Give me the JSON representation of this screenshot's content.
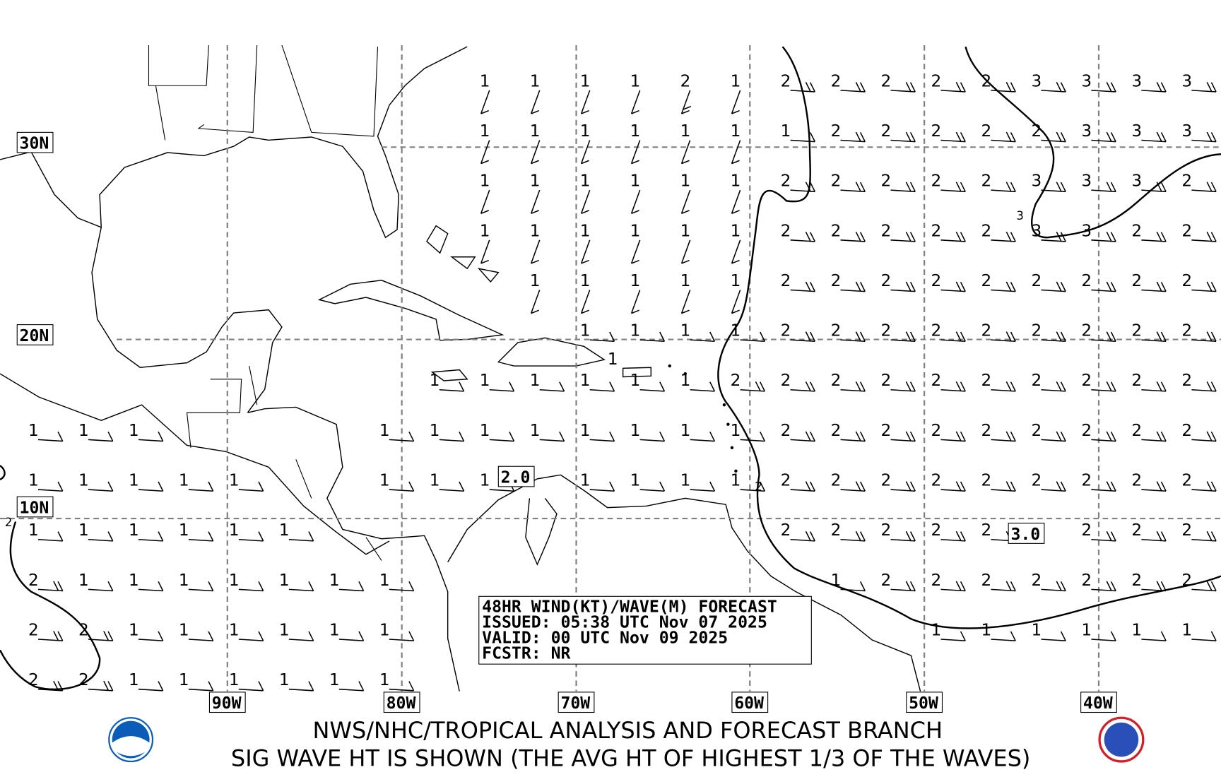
{
  "map": {
    "lat_labels": [
      "30N",
      "20N",
      "10N"
    ],
    "lon_labels": [
      "90W",
      "80W",
      "70W",
      "60W",
      "50W",
      "40W"
    ],
    "max_labels": [
      "2.0",
      "3.0"
    ],
    "contour_labels": [
      "3",
      "2",
      "2",
      "1"
    ],
    "wave_heights_m": [
      [
        null,
        null,
        null,
        null,
        null,
        null,
        null,
        null,
        null,
        1,
        1,
        1,
        1,
        2,
        1,
        2,
        2,
        2,
        2,
        2,
        3,
        3,
        3,
        3
      ],
      [
        null,
        null,
        null,
        null,
        null,
        null,
        null,
        null,
        null,
        1,
        1,
        1,
        1,
        1,
        1,
        1,
        2,
        2,
        2,
        2,
        2,
        3,
        3,
        3
      ],
      [
        null,
        null,
        null,
        null,
        null,
        null,
        null,
        null,
        null,
        1,
        1,
        1,
        1,
        1,
        1,
        2,
        2,
        2,
        2,
        2,
        3,
        3,
        3,
        2
      ],
      [
        null,
        null,
        null,
        null,
        null,
        null,
        null,
        null,
        null,
        1,
        1,
        1,
        1,
        1,
        1,
        2,
        2,
        2,
        2,
        2,
        3,
        3,
        2,
        2
      ],
      [
        null,
        null,
        null,
        null,
        null,
        null,
        null,
        null,
        null,
        null,
        1,
        1,
        1,
        1,
        1,
        2,
        2,
        2,
        2,
        2,
        2,
        2,
        2,
        2
      ],
      [
        null,
        null,
        null,
        null,
        null,
        null,
        null,
        null,
        null,
        null,
        null,
        1,
        1,
        1,
        1,
        2,
        2,
        2,
        2,
        2,
        2,
        2,
        2,
        2
      ],
      [
        null,
        null,
        null,
        null,
        null,
        null,
        null,
        null,
        1,
        1,
        1,
        1,
        1,
        1,
        2,
        2,
        2,
        2,
        2,
        2,
        2,
        2,
        2,
        2
      ],
      [
        1,
        1,
        1,
        null,
        null,
        null,
        null,
        1,
        1,
        1,
        1,
        1,
        1,
        1,
        1,
        2,
        2,
        2,
        2,
        2,
        2,
        2,
        2,
        2
      ],
      [
        1,
        1,
        1,
        1,
        1,
        null,
        null,
        1,
        1,
        1,
        null,
        1,
        1,
        1,
        1,
        2,
        2,
        2,
        2,
        2,
        2,
        2,
        2,
        2
      ],
      [
        1,
        1,
        1,
        1,
        1,
        1,
        null,
        null,
        null,
        null,
        null,
        null,
        null,
        null,
        null,
        2,
        2,
        2,
        2,
        2,
        null,
        2,
        2,
        2
      ],
      [
        2,
        1,
        1,
        1,
        1,
        1,
        1,
        1,
        null,
        null,
        null,
        null,
        null,
        null,
        null,
        null,
        1,
        2,
        2,
        2,
        2,
        2,
        2,
        2
      ],
      [
        2,
        2,
        1,
        1,
        1,
        1,
        1,
        1,
        null,
        null,
        null,
        null,
        null,
        null,
        null,
        null,
        null,
        null,
        1,
        1,
        1,
        1,
        1,
        1
      ],
      [
        2,
        2,
        1,
        1,
        1,
        1,
        1,
        1,
        null,
        null,
        null,
        null,
        null,
        null,
        null,
        null,
        null,
        null,
        null,
        null,
        null,
        null,
        null,
        null
      ]
    ]
  },
  "forecast_box": {
    "line1": "48HR WIND(KT)/WAVE(M) FORECAST",
    "line2": "ISSUED: 05:38 UTC Nov 07 2025",
    "line3": "VALID: 00 UTC Nov 09 2025",
    "line4": "FCSTR: NR"
  },
  "footer": {
    "line1": "NWS/NHC/TROPICAL ANALYSIS AND FORECAST BRANCH",
    "line2": "SIG WAVE HT IS SHOWN (THE AVG HT OF HIGHEST 1/3 OF THE WAVES)",
    "logo_left": "NOAA",
    "logo_right": "TAFB"
  },
  "colors": {
    "line": "#000000",
    "grid": "#808080",
    "noaa_blue": "#0a5cb8",
    "tafb_red": "#d0202a"
  }
}
